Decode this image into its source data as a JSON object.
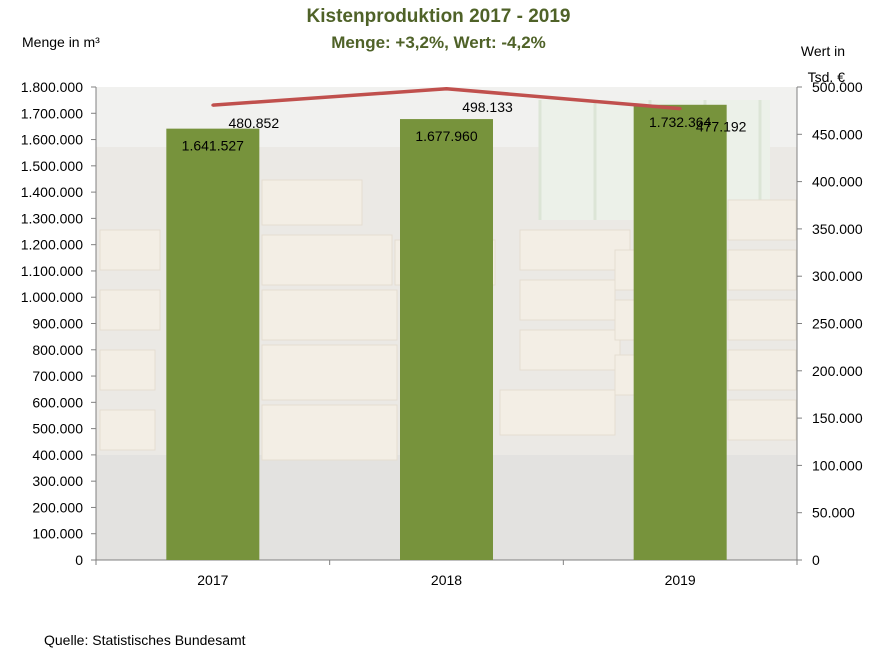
{
  "chart_data": {
    "type": "bar+line",
    "title": "Kistenproduktion 2017 - 2019",
    "subtitle": "Menge: +3,2%, Wert: -4,2%",
    "ylabel_left": "Menge in m³",
    "ylabel_right": "Wert in Tsd. €",
    "categories": [
      "2017",
      "2018",
      "2019"
    ],
    "series": [
      {
        "type": "bar",
        "axis": "left",
        "values": [
          1641527,
          1677960,
          1732364
        ],
        "labels": [
          "1.641.527",
          "1.677.960",
          "1.732.364"
        ]
      },
      {
        "type": "line",
        "axis": "right",
        "values": [
          480852,
          498133,
          477192
        ],
        "labels": [
          "480.852",
          "498.133",
          "477.192"
        ]
      }
    ],
    "ylim_left": [
      0,
      1800000
    ],
    "ylim_right": [
      0,
      500000
    ],
    "yticks_left": [
      "0",
      "100.000",
      "200.000",
      "300.000",
      "400.000",
      "500.000",
      "600.000",
      "700.000",
      "800.000",
      "900.000",
      "1.000.000",
      "1.100.000",
      "1.200.000",
      "1.300.000",
      "1.400.000",
      "1.500.000",
      "1.600.000",
      "1.700.000",
      "1.800.000"
    ],
    "yticks_right": [
      "0",
      "50.000",
      "100.000",
      "150.000",
      "200.000",
      "250.000",
      "300.000",
      "350.000",
      "400.000",
      "450.000",
      "500.000"
    ],
    "grid": false,
    "background": "photo of stacked wooden crates in a warehouse, faded",
    "colors": {
      "bar": "#77933c",
      "line": "#c0504d",
      "title": "#4f6228"
    }
  },
  "source": "Quelle: Statistisches Bundesamt"
}
